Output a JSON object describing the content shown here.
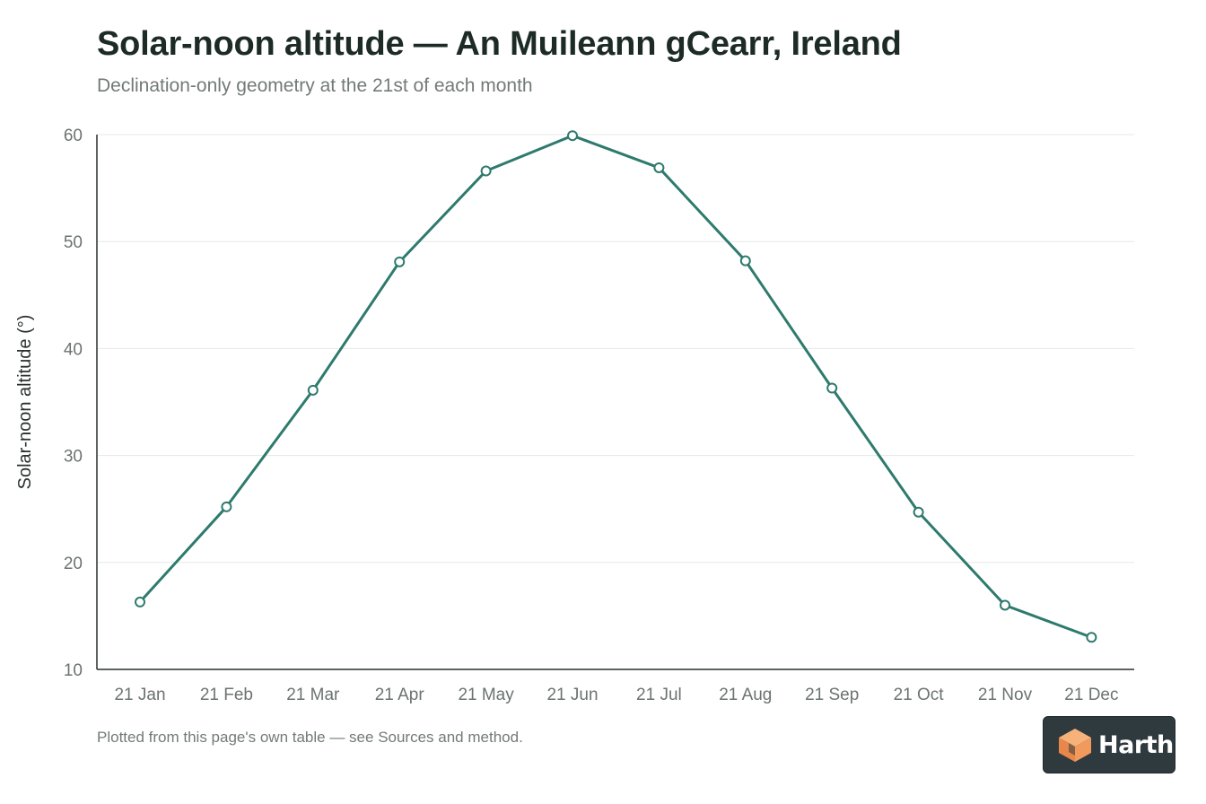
{
  "chart_data": {
    "type": "line",
    "title": "Solar-noon altitude — An Muileann gCearr, Ireland",
    "subtitle": "Declination-only geometry at the 21st of each month",
    "xlabel": "",
    "ylabel": "Solar-noon altitude (°)",
    "categories": [
      "21 Jan",
      "21 Feb",
      "21 Mar",
      "21 Apr",
      "21 May",
      "21 Jun",
      "21 Jul",
      "21 Aug",
      "21 Sep",
      "21 Oct",
      "21 Nov",
      "21 Dec"
    ],
    "series": [
      {
        "values": [
          16.3,
          25.2,
          36.1,
          48.1,
          56.6,
          59.9,
          56.9,
          48.2,
          36.3,
          24.7,
          16.0,
          13.0
        ]
      }
    ],
    "ylim": [
      10,
      60
    ],
    "yticks": [
      10,
      20,
      30,
      40,
      50,
      60
    ],
    "grid": "horizontal",
    "legend": "none",
    "line_color": "#2e7a6d",
    "marker_fill": "#ffffff"
  },
  "footnote": "Plotted from this page's own table — see Sources and method.",
  "badge": {
    "wordmark": "Harth",
    "icon": "harth-cube-logo"
  }
}
